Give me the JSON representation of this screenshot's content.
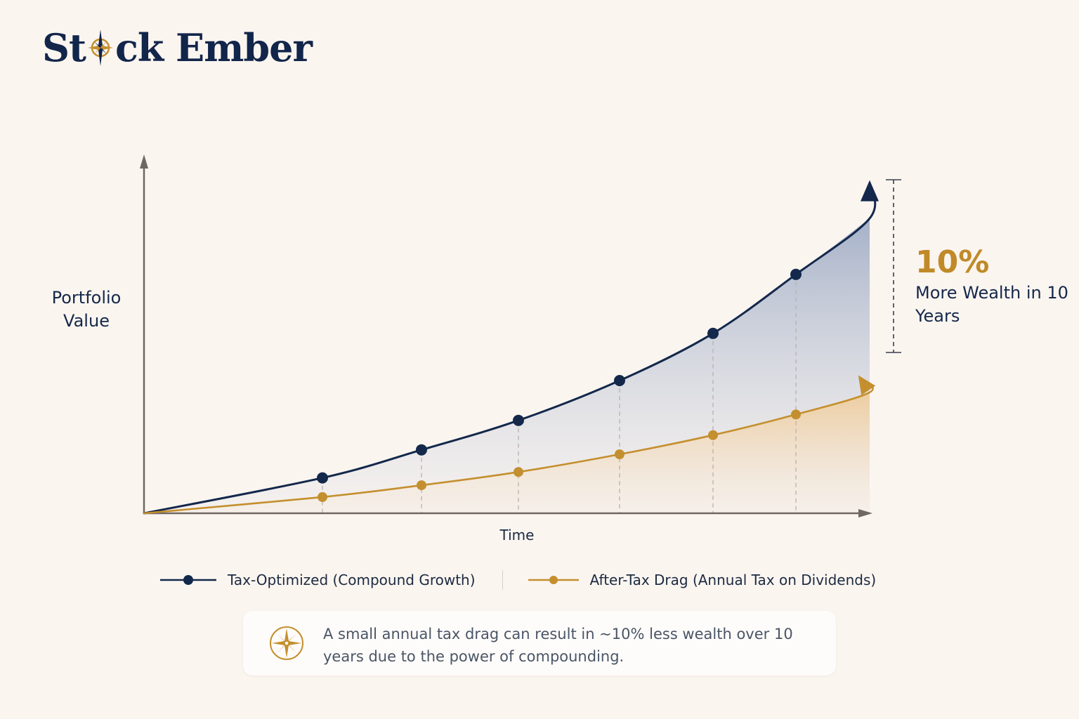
{
  "brand": {
    "part1": "St",
    "part2": "ck Ember"
  },
  "colors": {
    "navy": "#13284b",
    "gold": "#c48f2e",
    "background": "#fbf5f0"
  },
  "icons": {
    "logo": "compass-rose-icon",
    "note": "compass-rose-icon"
  },
  "chart_data": {
    "type": "line",
    "title": "",
    "xlabel": "Time",
    "ylabel": "Portfolio Value",
    "grid": false,
    "legend_position": "bottom",
    "x": [
      0,
      1,
      2,
      3,
      4,
      5,
      6,
      7,
      8
    ],
    "series": [
      {
        "name": "Tax-Optimized (Compound Growth)",
        "color": "#13284b",
        "values": [
          0,
          12,
          21.5,
          31.5,
          45,
          61,
          81,
          100,
          112
        ]
      },
      {
        "name": "After-Tax Drag (Annual Tax on Dividends)",
        "color": "#c48f2e",
        "values": [
          0,
          5.5,
          9.5,
          14,
          20,
          26.5,
          33.5,
          41,
          46
        ]
      }
    ],
    "marked_points": [
      1,
      2,
      3,
      4,
      5,
      6
    ],
    "annotation": {
      "value": "10%",
      "label": "More Wealth in 10 Years"
    }
  },
  "note": {
    "text": "A small annual tax drag can result in ~10% less wealth over 10 years due to the power of compounding."
  }
}
